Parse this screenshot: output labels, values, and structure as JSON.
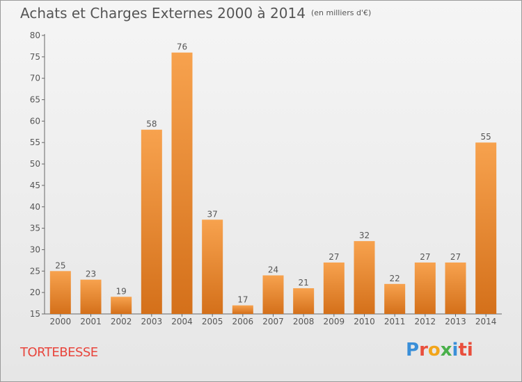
{
  "header": {
    "title": "Achats et Charges Externes 2000 à 2014",
    "unit": "(en milliers d'€)"
  },
  "footer": {
    "commune": "TORTEBESSE",
    "logo": [
      "P",
      "r",
      "o",
      "x",
      "i",
      "ti"
    ]
  },
  "colors": {
    "bar_top": "#f7a24e",
    "bar_bottom": "#d4701a",
    "text": "#555555",
    "commune": "#e8453c"
  },
  "chart_data": {
    "type": "bar",
    "title": "Achats et Charges Externes 2000 à 2014",
    "xlabel": "",
    "ylabel": "",
    "categories": [
      "2000",
      "2001",
      "2002",
      "2003",
      "2004",
      "2005",
      "2006",
      "2007",
      "2008",
      "2009",
      "2010",
      "2011",
      "2012",
      "2013",
      "2014"
    ],
    "values": [
      25,
      23,
      19,
      58,
      76,
      37,
      17,
      24,
      21,
      27,
      32,
      22,
      27,
      27,
      55
    ],
    "data_labels": [
      "25",
      "23",
      "19",
      "58",
      "76",
      "37",
      "17",
      "24",
      "21",
      "27",
      "32",
      "22",
      "27",
      "27",
      "55"
    ],
    "yticks": [
      "15",
      "20",
      "25",
      "30",
      "35",
      "40",
      "45",
      "50",
      "55",
      "60",
      "65",
      "70",
      "75",
      "80"
    ],
    "ylim": [
      15,
      80
    ],
    "grid": false,
    "legend": "none"
  }
}
